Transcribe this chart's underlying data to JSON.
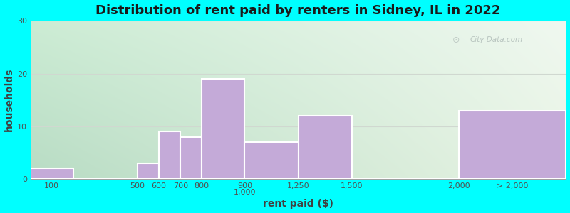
{
  "title": "Distribution of rent paid by renters in Sidney, IL in 2022",
  "xlabel": "rent paid ($)",
  "ylabel": "households",
  "background_outer": "#00FFFF",
  "bar_color": "#c4aad8",
  "bar_edgecolor": "#ffffff",
  "bar_linewidth": 1.5,
  "bin_edges": [
    0,
    200,
    500,
    600,
    700,
    800,
    1000,
    1250,
    1500,
    2000,
    2500
  ],
  "values": [
    2,
    0,
    3,
    9,
    8,
    19,
    7,
    12,
    0,
    13
  ],
  "tick_labels": [
    "100",
    "500",
    "600",
    "700",
    "800",
    "900\n1,000",
    "1,250",
    "1,500",
    "2,000",
    "> 2,000"
  ],
  "tick_at": [
    100,
    500,
    600,
    700,
    800,
    1000,
    1250,
    1500,
    2000,
    2250
  ],
  "ylim": [
    0,
    30
  ],
  "yticks": [
    0,
    10,
    20,
    30
  ],
  "title_fontsize": 13,
  "axis_label_fontsize": 10,
  "tick_fontsize": 8,
  "watermark": "City-Data.com",
  "grad_top_left": "#c8e8d0",
  "grad_top_right": "#e8f0f8",
  "grad_bottom": "#e8f4e0",
  "xlim": [
    0,
    2500
  ]
}
